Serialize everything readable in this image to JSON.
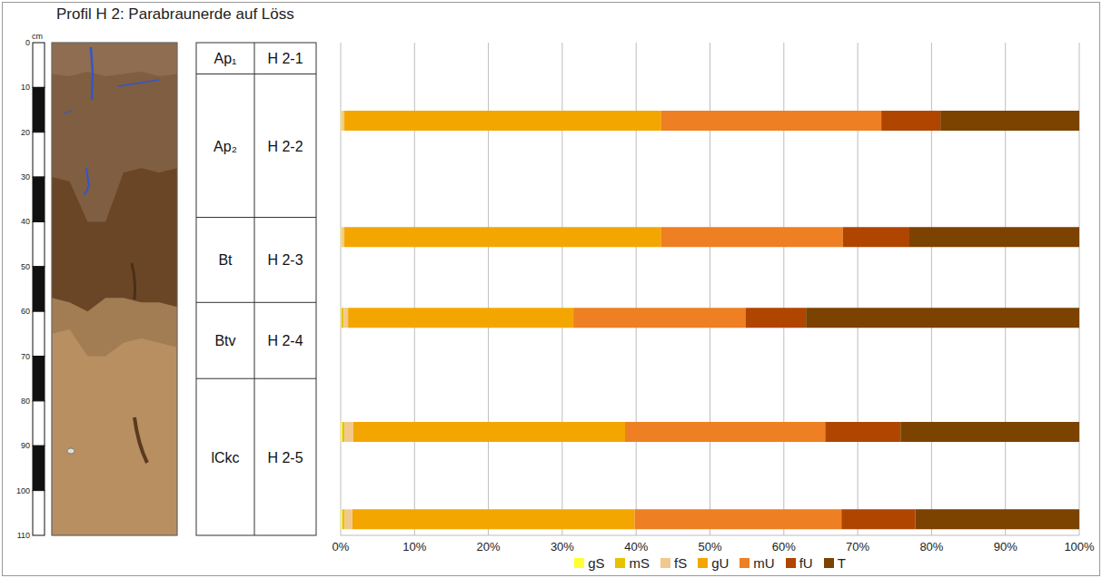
{
  "title": "Profil H 2: Parabraunerde auf Löss",
  "profile": {
    "depth_label": "cm",
    "depth_ticks": [
      0,
      10,
      20,
      30,
      40,
      50,
      60,
      70,
      80,
      90,
      100,
      110
    ],
    "horizons": [
      {
        "horizon": "Ap₁",
        "sample": "H 2-1",
        "top": 0,
        "bottom": 7
      },
      {
        "horizon": "Ap₂",
        "sample": "H 2-2",
        "top": 7,
        "bottom": 39
      },
      {
        "horizon": "Bt",
        "sample": "H 2-3",
        "top": 39,
        "bottom": 58
      },
      {
        "horizon": "Btv",
        "sample": "H 2-4",
        "top": 58,
        "bottom": 75
      },
      {
        "horizon": "lCkc",
        "sample": "H 2-5",
        "top": 75,
        "bottom": 110
      }
    ]
  },
  "chart_data": {
    "type": "bar",
    "orientation": "horizontal",
    "stacked": true,
    "grid": true,
    "legend": "bottom",
    "categories": [
      "H 2-1",
      "H 2-2",
      "H 2-3",
      "H 2-4",
      "H 2-5"
    ],
    "xlim": [
      0,
      100
    ],
    "xticks": [
      {
        "value": 0,
        "label": "0%"
      },
      {
        "value": 10,
        "label": "10%"
      },
      {
        "value": 20,
        "label": "20%"
      },
      {
        "value": 30,
        "label": "30%"
      },
      {
        "value": 40,
        "label": "40%"
      },
      {
        "value": 50,
        "label": "50%"
      },
      {
        "value": 60,
        "label": "60%"
      },
      {
        "value": 70,
        "label": "70%"
      },
      {
        "value": 80,
        "label": "80%"
      },
      {
        "value": 90,
        "label": "90%"
      },
      {
        "value": 100,
        "label": "100%"
      }
    ],
    "series": [
      {
        "name": "gS",
        "color": "#ffff33",
        "values": [
          0.2,
          0.2,
          0.1,
          0.1,
          0.1
        ]
      },
      {
        "name": "mS",
        "color": "#e6c200",
        "values": [
          0.3,
          0.3,
          0.3,
          0.1,
          0.1
        ]
      },
      {
        "name": "fS",
        "color": "#f2c98c",
        "values": [
          1.1,
          1.2,
          0.6,
          0.3,
          0.3
        ]
      },
      {
        "name": "gU",
        "color": "#f4a600",
        "values": [
          38.2,
          36.8,
          30.5,
          42.9,
          42.9
        ]
      },
      {
        "name": "mU",
        "color": "#ee7f22",
        "values": [
          28,
          27.1,
          23.3,
          24.6,
          29.8
        ]
      },
      {
        "name": "fU",
        "color": "#b04500",
        "values": [
          10,
          10.2,
          8.2,
          9,
          8
        ]
      },
      {
        "name": "T",
        "color": "#7b4200",
        "values": [
          22.2,
          24.2,
          37,
          23,
          18.8
        ]
      }
    ]
  }
}
